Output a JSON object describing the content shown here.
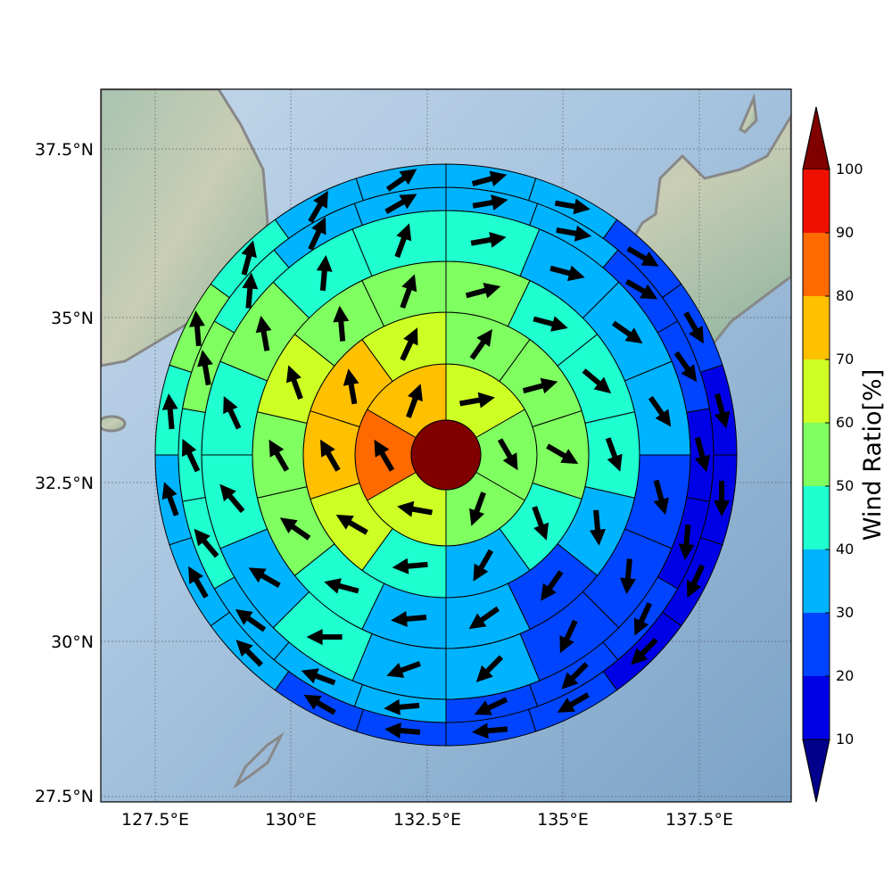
{
  "map": {
    "lon_ticks": [
      "127.5°E",
      "130°E",
      "132.5°E",
      "135°E",
      "137.5°E"
    ],
    "lat_ticks": [
      "37.5°N",
      "35°N",
      "32.5°N",
      "30°N",
      "27.5°N"
    ],
    "center": {
      "lon": 132.9,
      "lat": 33.0
    }
  },
  "colorbar": {
    "label": "Wind Ratio[%]",
    "ticks": [
      "10",
      "20",
      "30",
      "40",
      "50",
      "60",
      "70",
      "80",
      "90",
      "100"
    ],
    "colors": {
      "under": "#00008c",
      "bins": [
        "#0000e6",
        "#0044ff",
        "#00b3ff",
        "#1fffd0",
        "#7fff60",
        "#cdff25",
        "#ffc000",
        "#ff6a00",
        "#f01000"
      ],
      "over": "#800000"
    }
  },
  "chart_data": {
    "type": "heatmap",
    "description_of_layout": "polar grid, rings from inner to outer; each ring lists sectors clockwise from north",
    "center_value": 100,
    "rings": [
      {
        "sectors": [
          {
            "value": 65,
            "dir": 80
          },
          {
            "value": 55,
            "dir": 150
          },
          {
            "value": 55,
            "dir": 200
          },
          {
            "value": 65,
            "dir": 280
          },
          {
            "value": 85,
            "dir": 330
          },
          {
            "value": 75,
            "dir": 20
          }
        ]
      },
      {
        "sectors": [
          {
            "value": 55,
            "dir": 35
          },
          {
            "value": 55,
            "dir": 75
          },
          {
            "value": 50,
            "dir": 120
          },
          {
            "value": 45,
            "dir": 160
          },
          {
            "value": 35,
            "dir": 210
          },
          {
            "value": 45,
            "dir": 265
          },
          {
            "value": 65,
            "dir": 300
          },
          {
            "value": 75,
            "dir": 330
          },
          {
            "value": 75,
            "dir": 350
          },
          {
            "value": 65,
            "dir": 25
          }
        ]
      },
      {
        "sectors": [
          {
            "value": 55,
            "dir": 75
          },
          {
            "value": 45,
            "dir": 105
          },
          {
            "value": 45,
            "dir": 130
          },
          {
            "value": 45,
            "dir": 160
          },
          {
            "value": 35,
            "dir": 175
          },
          {
            "value": 25,
            "dir": 215
          },
          {
            "value": 35,
            "dir": 235
          },
          {
            "value": 35,
            "dir": 265
          },
          {
            "value": 45,
            "dir": 285
          },
          {
            "value": 55,
            "dir": 305
          },
          {
            "value": 55,
            "dir": 330
          },
          {
            "value": 65,
            "dir": 340
          },
          {
            "value": 55,
            "dir": 355
          },
          {
            "value": 55,
            "dir": 20
          }
        ]
      },
      {
        "sectors": [
          {
            "value": 45,
            "dir": 80
          },
          {
            "value": 35,
            "dir": 105
          },
          {
            "value": 35,
            "dir": 125
          },
          {
            "value": 35,
            "dir": 145
          },
          {
            "value": 25,
            "dir": 165
          },
          {
            "value": 25,
            "dir": 185
          },
          {
            "value": 25,
            "dir": 205
          },
          {
            "value": 35,
            "dir": 225
          },
          {
            "value": 35,
            "dir": 250
          },
          {
            "value": 45,
            "dir": 270
          },
          {
            "value": 35,
            "dir": 300
          },
          {
            "value": 45,
            "dir": 320
          },
          {
            "value": 45,
            "dir": 335
          },
          {
            "value": 55,
            "dir": 350
          },
          {
            "value": 45,
            "dir": 5
          },
          {
            "value": 45,
            "dir": 20
          }
        ]
      },
      {
        "sectors": [
          {
            "value": 35,
            "dir": 80
          },
          {
            "value": 35,
            "dir": 100
          },
          {
            "value": 25,
            "dir": 120
          },
          {
            "value": 25,
            "dir": 145
          },
          {
            "value": 15,
            "dir": 165
          },
          {
            "value": 15,
            "dir": 185
          },
          {
            "value": 25,
            "dir": 205
          },
          {
            "value": 25,
            "dir": 225
          },
          {
            "value": 25,
            "dir": 245
          },
          {
            "value": 35,
            "dir": 265
          },
          {
            "value": 35,
            "dir": 290
          },
          {
            "value": 35,
            "dir": 305
          },
          {
            "value": 45,
            "dir": 320
          },
          {
            "value": 45,
            "dir": 335
          },
          {
            "value": 55,
            "dir": 350
          },
          {
            "value": 45,
            "dir": 5
          },
          {
            "value": 35,
            "dir": 25
          },
          {
            "value": 35,
            "dir": 60
          }
        ]
      },
      {
        "sectors": [
          {
            "value": 35,
            "dir": 75
          },
          {
            "value": 35,
            "dir": 100
          },
          {
            "value": 25,
            "dir": 120
          },
          {
            "value": 25,
            "dir": 150
          },
          {
            "value": 15,
            "dir": 165
          },
          {
            "value": 15,
            "dir": 180
          },
          {
            "value": 15,
            "dir": 205
          },
          {
            "value": 15,
            "dir": 225
          },
          {
            "value": 25,
            "dir": 240
          },
          {
            "value": 25,
            "dir": 265
          },
          {
            "value": 25,
            "dir": 275
          },
          {
            "value": 25,
            "dir": 300
          },
          {
            "value": 35,
            "dir": 315
          },
          {
            "value": 35,
            "dir": 330
          },
          {
            "value": 35,
            "dir": 340
          },
          {
            "value": 45,
            "dir": 355
          },
          {
            "value": 55,
            "dir": 355
          },
          {
            "value": 45,
            "dir": 15
          },
          {
            "value": 35,
            "dir": 30
          },
          {
            "value": 35,
            "dir": 55
          }
        ]
      }
    ]
  }
}
